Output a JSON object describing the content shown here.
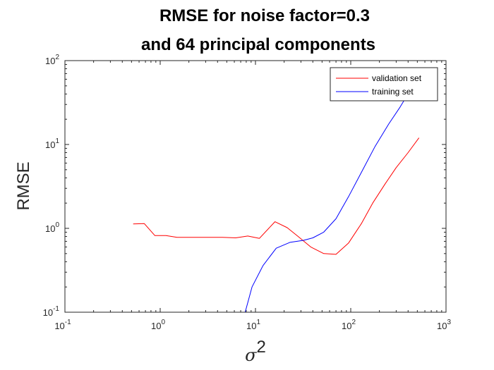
{
  "chart_data": {
    "type": "line",
    "title_lines": [
      "RMSE for noise factor=0.3",
      "and 64 principal components"
    ],
    "xlabel_base": "σ",
    "xlabel_exponent": "2",
    "ylabel": "RMSE",
    "xscale": "log",
    "yscale": "log",
    "xlim": [
      0.1,
      1000
    ],
    "ylim": [
      0.1,
      100
    ],
    "xticks": [
      {
        "value": 0.1,
        "base": "10",
        "exp": "-1"
      },
      {
        "value": 1,
        "base": "10",
        "exp": "0"
      },
      {
        "value": 10,
        "base": "10",
        "exp": "1"
      },
      {
        "value": 100,
        "base": "10",
        "exp": "2"
      },
      {
        "value": 1000,
        "base": "10",
        "exp": "3"
      }
    ],
    "yticks": [
      {
        "value": 0.1,
        "base": "10",
        "exp": "-1"
      },
      {
        "value": 1,
        "base": "10",
        "exp": "0"
      },
      {
        "value": 10,
        "base": "10",
        "exp": "1"
      },
      {
        "value": 100,
        "base": "10",
        "exp": "2"
      }
    ],
    "grid": false,
    "legend_position": "top-right",
    "series": [
      {
        "name": "validation set",
        "color": "#ff0000",
        "points": [
          [
            0.52,
            1.13
          ],
          [
            0.68,
            1.14
          ],
          [
            0.88,
            0.82
          ],
          [
            1.15,
            0.82
          ],
          [
            1.5,
            0.78
          ],
          [
            2.0,
            0.78
          ],
          [
            3.0,
            0.78
          ],
          [
            4.5,
            0.78
          ],
          [
            6.2,
            0.77
          ],
          [
            8.3,
            0.81
          ],
          [
            11.0,
            0.76
          ],
          [
            16.0,
            1.2
          ],
          [
            21.5,
            1.02
          ],
          [
            28.0,
            0.8
          ],
          [
            38.0,
            0.6
          ],
          [
            52.0,
            0.5
          ],
          [
            70.0,
            0.49
          ],
          [
            95.0,
            0.67
          ],
          [
            130.0,
            1.15
          ],
          [
            170.0,
            2.0
          ],
          [
            230.0,
            3.4
          ],
          [
            300.0,
            5.3
          ],
          [
            400.0,
            8.0
          ],
          [
            520.0,
            12.0
          ]
        ]
      },
      {
        "name": "training set",
        "color": "#0000ff",
        "points": [
          [
            7.8,
            0.1
          ],
          [
            9.2,
            0.2
          ],
          [
            12.0,
            0.36
          ],
          [
            16.5,
            0.58
          ],
          [
            23.0,
            0.68
          ],
          [
            32.0,
            0.72
          ],
          [
            40.0,
            0.77
          ],
          [
            52.0,
            0.9
          ],
          [
            70.0,
            1.3
          ],
          [
            95.0,
            2.4
          ],
          [
            130.0,
            4.7
          ],
          [
            180.0,
            9.5
          ],
          [
            250.0,
            17.5
          ],
          [
            330.0,
            28.0
          ],
          [
            420.0,
            44.0
          ]
        ]
      }
    ]
  }
}
